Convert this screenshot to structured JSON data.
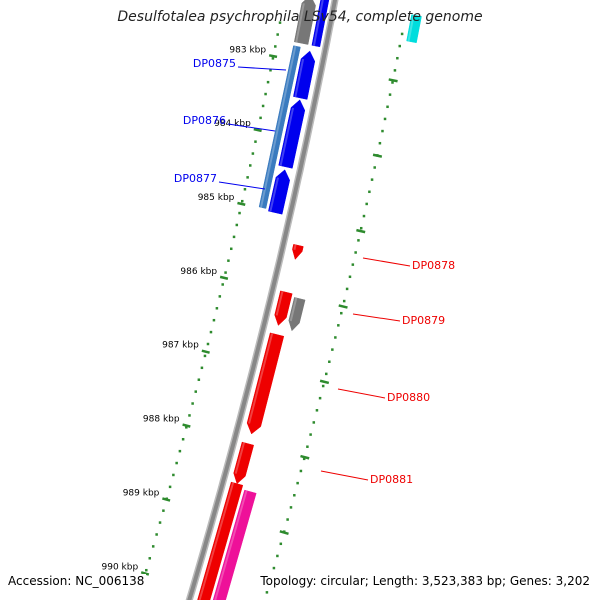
{
  "title": "Desulfotalea psychrophila LSv54, complete genome",
  "footer": {
    "accession": "Accession: NC_006138",
    "topology": "Topology: circular; Length: 3,523,383 bp; Genes: 3,202"
  },
  "ticks": [
    {
      "kbp": 983,
      "label": "983 kbp"
    },
    {
      "kbp": 984,
      "label": "984 kbp"
    },
    {
      "kbp": 985,
      "label": "985 kbp"
    },
    {
      "kbp": 986,
      "label": "986 kbp"
    },
    {
      "kbp": 987,
      "label": "987 kbp"
    },
    {
      "kbp": 988,
      "label": "988 kbp"
    },
    {
      "kbp": 989,
      "label": "989 kbp"
    },
    {
      "kbp": 990,
      "label": "990 kbp"
    }
  ],
  "genes": [
    {
      "id": "DP0875",
      "strand": "minus",
      "color": "#0000ee"
    },
    {
      "id": "DP0876",
      "strand": "minus",
      "color": "#0000ee"
    },
    {
      "id": "DP0877",
      "strand": "minus",
      "color": "#0000ee"
    },
    {
      "id": "DP0878",
      "strand": "plus",
      "color": "#ee0000"
    },
    {
      "id": "DP0879",
      "strand": "plus",
      "color": "#ee0000"
    },
    {
      "id": "DP0880",
      "strand": "plus",
      "color": "#ee0000"
    },
    {
      "id": "DP0881",
      "strand": "plus",
      "color": "#ee0000"
    }
  ],
  "colors": {
    "backbone": "#888888",
    "forward_cds": "#ee0000",
    "reverse_cds": "#0000ee",
    "other_feature": "#777777",
    "steel_feature": "#3a7bbf",
    "pink_feature": "#ee1199",
    "cyan_feature": "#00dddd",
    "tick": "#2e8b2e"
  }
}
